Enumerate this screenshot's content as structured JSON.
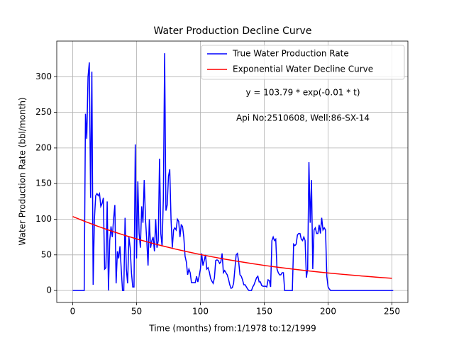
{
  "chart_data": {
    "type": "line",
    "title": "Water Production Decline Curve",
    "xlabel": "Time (months) from:1/1978 to:12/1999",
    "ylabel": "Water Production Rate (bbl/month)",
    "annotations": [
      "y = 103.79 * exp(-0.01 * t)",
      "Api No:2510608, Well:86-SX-14"
    ],
    "series": [
      {
        "name": "True Water Production Rate",
        "color": "#0000ff",
        "x": [
          0,
          9,
          10,
          11,
          12,
          13,
          14,
          15,
          16,
          17,
          18,
          19,
          20,
          21,
          22,
          23,
          24,
          25,
          26,
          27,
          28,
          29,
          30,
          31,
          32,
          33,
          34,
          35,
          36,
          37,
          38,
          39,
          40,
          41,
          42,
          43,
          44,
          45,
          46,
          47,
          48,
          49,
          50,
          51,
          52,
          53,
          54,
          55,
          56,
          57,
          58,
          59,
          60,
          61,
          62,
          63,
          64,
          65,
          66,
          67,
          68,
          69,
          70,
          71,
          72,
          73,
          74,
          75,
          76,
          77,
          78,
          79,
          80,
          81,
          82,
          83,
          84,
          85,
          86,
          87,
          88,
          89,
          90,
          91,
          92,
          93,
          94,
          95,
          96,
          97,
          98,
          99,
          100,
          101,
          102,
          103,
          104,
          105,
          106,
          107,
          108,
          109,
          110,
          111,
          112,
          113,
          114,
          115,
          116,
          117,
          118,
          119,
          120,
          121,
          122,
          123,
          124,
          125,
          126,
          127,
          128,
          129,
          130,
          131,
          132,
          133,
          134,
          135,
          136,
          137,
          138,
          139,
          140,
          141,
          142,
          143,
          144,
          145,
          146,
          147,
          148,
          149,
          150,
          151,
          152,
          153,
          154,
          155,
          156,
          157,
          158,
          159,
          160,
          161,
          162,
          163,
          164,
          165,
          166,
          167,
          168,
          169,
          170,
          171,
          172,
          173,
          174,
          175,
          176,
          177,
          178,
          179,
          180,
          181,
          182,
          183,
          184,
          185,
          186,
          187,
          188,
          189,
          190,
          191,
          192,
          193,
          194,
          195,
          196,
          197,
          198,
          199,
          200,
          201,
          202,
          251
        ],
        "values": [
          0,
          0,
          248,
          213,
          300,
          320,
          130,
          307,
          8,
          100,
          133,
          136,
          133,
          136,
          118,
          122,
          130,
          30,
          32,
          125,
          0,
          70,
          90,
          75,
          100,
          120,
          10,
          55,
          45,
          62,
          30,
          0,
          0,
          102,
          30,
          10,
          75,
          60,
          25,
          5,
          5,
          205,
          45,
          153,
          80,
          60,
          118,
          95,
          155,
          100,
          70,
          35,
          100,
          60,
          70,
          75,
          55,
          100,
          60,
          70,
          185,
          80,
          62,
          130,
          333,
          112,
          120,
          160,
          170,
          100,
          60,
          85,
          88,
          85,
          100,
          97,
          75,
          92,
          90,
          75,
          48,
          40,
          22,
          30,
          25,
          11,
          11,
          11,
          11,
          20,
          12,
          20,
          30,
          52,
          35,
          42,
          50,
          30,
          32,
          26,
          17,
          13,
          10,
          18,
          42,
          43,
          42,
          38,
          40,
          52,
          25,
          28,
          25,
          22,
          16,
          8,
          3,
          4,
          10,
          30,
          50,
          52,
          40,
          22,
          20,
          15,
          8,
          8,
          5,
          2,
          0,
          0,
          0,
          5,
          8,
          13,
          18,
          20,
          12,
          12,
          7,
          6,
          6,
          6,
          5,
          15,
          14,
          5,
          70,
          75,
          70,
          72,
          30,
          25,
          22,
          22,
          25,
          25,
          0,
          0,
          0,
          0,
          0,
          0,
          0,
          65,
          63,
          65,
          78,
          80,
          80,
          72,
          70,
          75,
          70,
          18,
          30,
          180,
          95,
          155,
          30,
          85,
          88,
          80,
          80,
          92,
          80,
          102,
          85,
          88,
          85,
          20,
          5,
          2,
          0,
          0
        ]
      },
      {
        "name": "Exponential Water Decline Curve",
        "color": "#ff0000",
        "x": [
          0,
          10,
          20,
          30,
          40,
          50,
          60,
          70,
          80,
          90,
          100,
          110,
          120,
          130,
          140,
          150,
          160,
          170,
          180,
          190,
          200,
          210,
          220,
          230,
          240,
          250
        ],
        "values": [
          103.8,
          96.6,
          89.9,
          83.6,
          77.8,
          72.4,
          67.4,
          62.7,
          58.3,
          54.3,
          50.5,
          47.0,
          43.7,
          40.7,
          37.9,
          35.2,
          32.8,
          30.5,
          28.4,
          26.4,
          24.6,
          22.9,
          21.3,
          19.8,
          18.4,
          17.1
        ]
      }
    ],
    "xlim": [
      -12.5,
      262.5
    ],
    "xticks": [
      0,
      50,
      100,
      150,
      200,
      250
    ],
    "ylim": [
      -16.8,
      350
    ],
    "yticks": [
      0,
      50,
      100,
      150,
      200,
      250,
      300
    ],
    "grid": true,
    "legend": "upper right"
  }
}
